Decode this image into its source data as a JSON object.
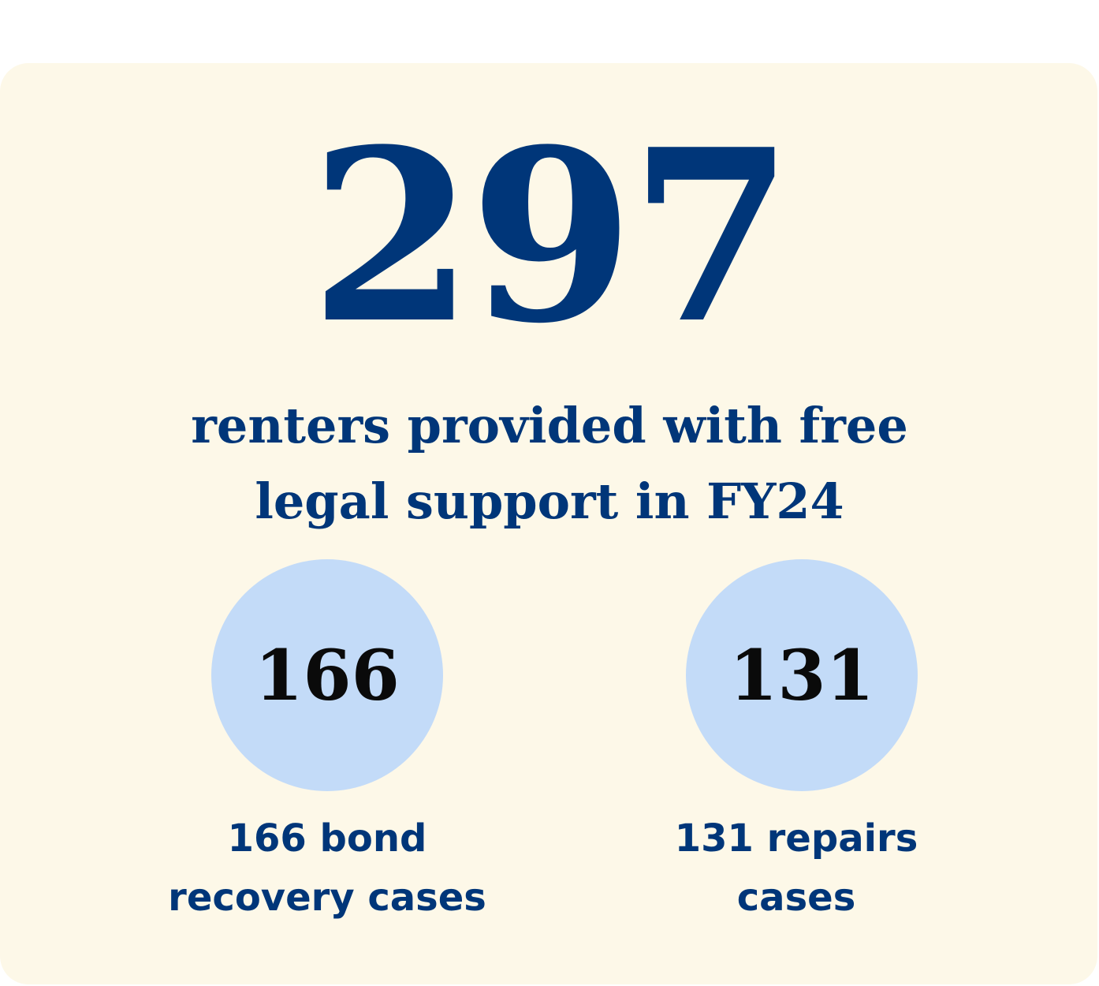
{
  "headline": {
    "total": "297",
    "line1": "renters provided with free",
    "line2": "legal support in FY24"
  },
  "stats": [
    {
      "value": "166",
      "caption_line1": "166 bond",
      "caption_line2": "recovery cases"
    },
    {
      "value": "131",
      "caption_line1": "131 repairs",
      "caption_line2": "cases"
    }
  ],
  "colors": {
    "card_background": "#fdf8e8",
    "primary_text": "#003679",
    "circle_fill": "#c3dbf8",
    "circle_text": "#0a0a0a"
  }
}
